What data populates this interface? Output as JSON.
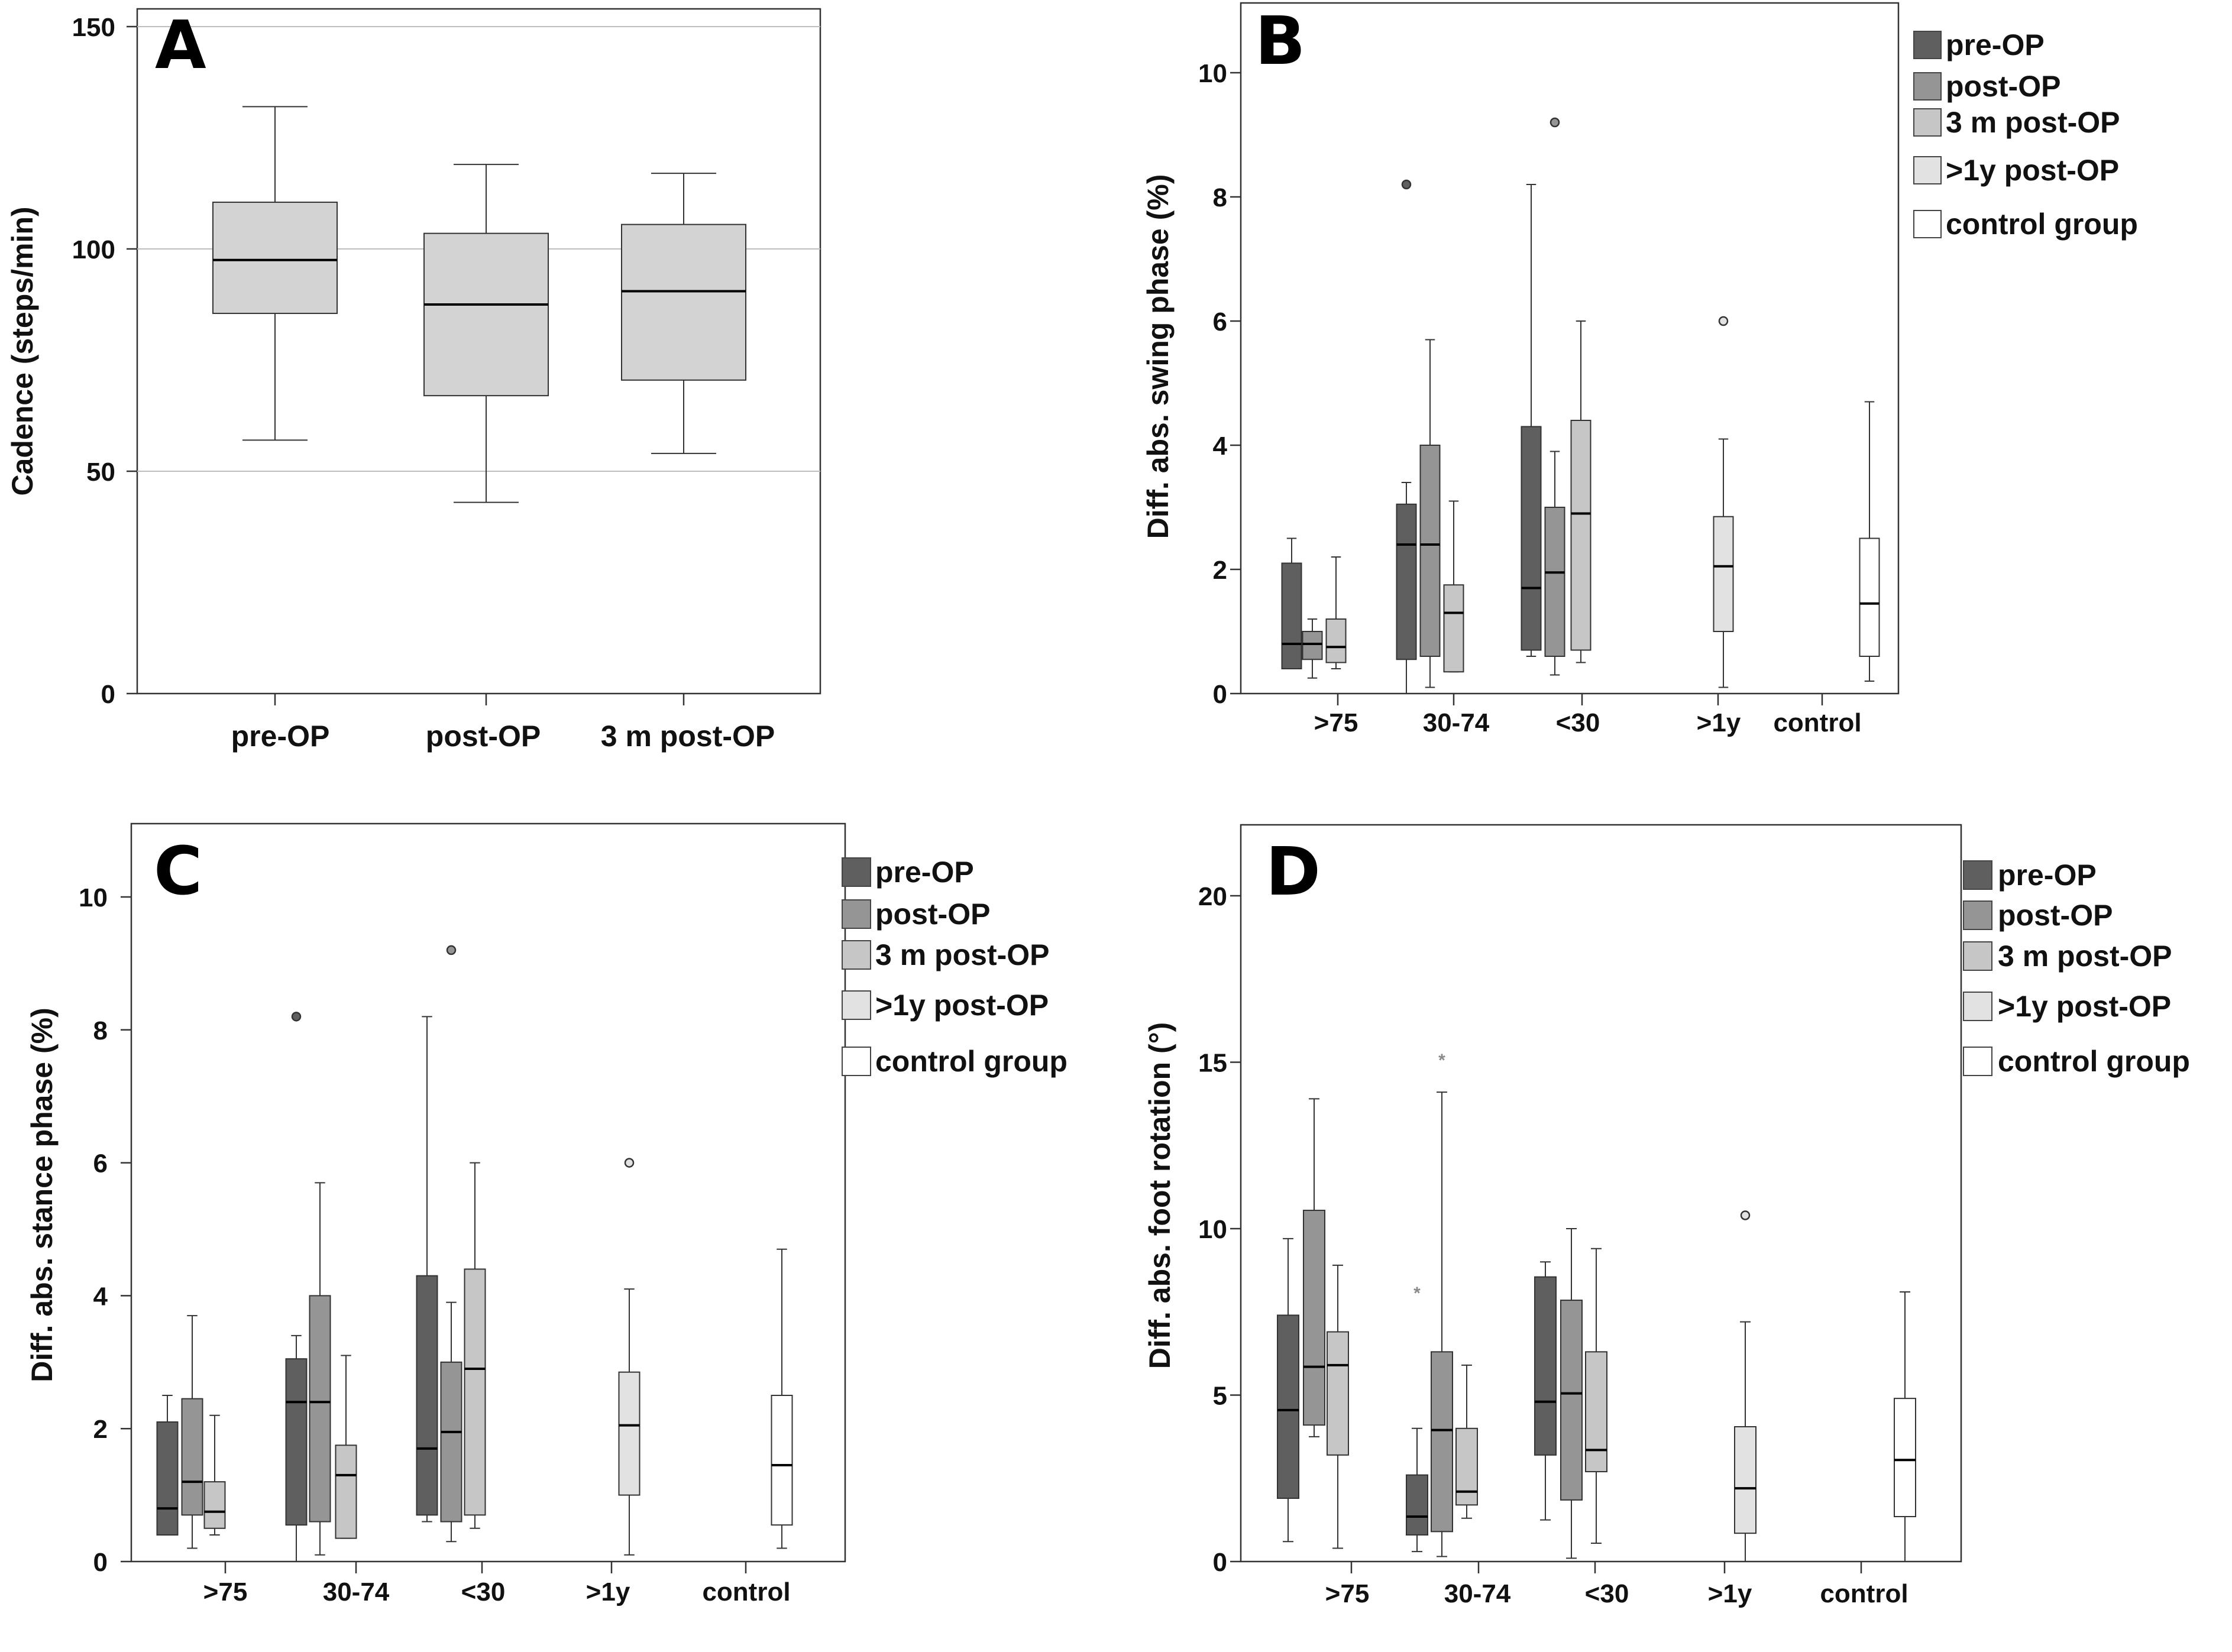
{
  "figure": {
    "legend_title": ""
  },
  "colors": {
    "pre_op": "#5f5f5f",
    "post_op": "#959595",
    "m3_post_op": "#c6c6c6",
    "y1_post_op": "#e2e2e2",
    "control": "#ffffff",
    "panelA_box": "#d3d3d3",
    "gridline": "#bdbdbd",
    "outline": "#333333"
  },
  "chart_data": [
    {
      "id": "A",
      "panel_label": "A",
      "type": "boxplot",
      "title": "",
      "xlabel": "",
      "ylabel": "Cadence (steps/min)",
      "ylim": [
        0,
        150
      ],
      "yticks": [
        0,
        50,
        100,
        150
      ],
      "ytick_labels": [
        "0",
        "50",
        "100",
        "150"
      ],
      "grid": true,
      "categories": [
        "pre-OP",
        "post-OP",
        "3 m post-OP"
      ],
      "legend": [],
      "boxes": [
        {
          "category": "pre-OP",
          "series": "pre-OP",
          "min": 57,
          "q1": 85.5,
          "median": 97.5,
          "q3": 110.5,
          "max": 132,
          "outliers": []
        },
        {
          "category": "post-OP",
          "series": "post-OP",
          "min": 43,
          "q1": 67,
          "median": 87.5,
          "q3": 103.5,
          "max": 119,
          "outliers": []
        },
        {
          "category": "3 m post-OP",
          "series": "3 m post-OP",
          "min": 54,
          "q1": 70.5,
          "median": 90.5,
          "q3": 105.5,
          "max": 117,
          "outliers": []
        }
      ]
    },
    {
      "id": "B",
      "panel_label": "B",
      "type": "boxplot",
      "title": "",
      "xlabel": "",
      "ylabel": "Diff. abs. swing phase (%)",
      "ylim": [
        0,
        11
      ],
      "yticks": [
        0,
        2,
        4,
        6,
        8,
        10
      ],
      "ytick_labels": [
        "0",
        "2",
        "4",
        "6",
        "8",
        "10"
      ],
      "grid": false,
      "categories": [
        ">75",
        "30-74",
        "<30",
        ">1y",
        "control"
      ],
      "legend": [
        "pre-OP",
        "post-OP",
        "3 m post-OP",
        ">1y post-OP",
        "control group"
      ],
      "boxes": [
        {
          "category": ">75",
          "series": "pre-OP",
          "min": 0.4,
          "q1": 0.4,
          "median": 0.8,
          "q3": 2.1,
          "max": 2.5,
          "outliers": []
        },
        {
          "category": ">75",
          "series": "post-OP",
          "min": 0.25,
          "q1": 0.55,
          "median": 0.8,
          "q3": 1.0,
          "max": 1.2,
          "outliers": []
        },
        {
          "category": ">75",
          "series": "3 m post-OP",
          "min": 0.4,
          "q1": 0.5,
          "median": 0.75,
          "q3": 1.2,
          "max": 2.2,
          "outliers": []
        },
        {
          "category": "30-74",
          "series": "pre-OP",
          "min": 0.0,
          "q1": 0.55,
          "median": 2.4,
          "q3": 3.05,
          "max": 3.4,
          "outliers": [
            {
              "value": 8.2,
              "marker": "circle"
            }
          ]
        },
        {
          "category": "30-74",
          "series": "post-OP",
          "min": 0.1,
          "q1": 0.6,
          "median": 2.4,
          "q3": 4.0,
          "max": 5.7,
          "outliers": []
        },
        {
          "category": "30-74",
          "series": "3 m post-OP",
          "min": 0.35,
          "q1": 0.35,
          "median": 1.3,
          "q3": 1.75,
          "max": 3.1,
          "outliers": []
        },
        {
          "category": "<30",
          "series": "pre-OP",
          "min": 0.6,
          "q1": 0.7,
          "median": 1.7,
          "q3": 4.3,
          "max": 8.2,
          "outliers": []
        },
        {
          "category": "<30",
          "series": "post-OP",
          "min": 0.3,
          "q1": 0.6,
          "median": 1.95,
          "q3": 3.0,
          "max": 3.9,
          "outliers": [
            {
              "value": 9.2,
              "marker": "circle"
            }
          ]
        },
        {
          "category": "<30",
          "series": "3 m post-OP",
          "min": 0.5,
          "q1": 0.7,
          "median": 2.9,
          "q3": 4.4,
          "max": 6.0,
          "outliers": []
        },
        {
          "category": ">1y",
          "series": ">1y post-OP",
          "min": 0.1,
          "q1": 1.0,
          "median": 2.05,
          "q3": 2.85,
          "max": 4.1,
          "outliers": [
            {
              "value": 6.0,
              "marker": "circle"
            }
          ]
        },
        {
          "category": "control",
          "series": "control group",
          "min": 0.2,
          "q1": 0.6,
          "median": 1.45,
          "q3": 2.5,
          "max": 4.7,
          "outliers": []
        }
      ]
    },
    {
      "id": "C",
      "panel_label": "C",
      "type": "boxplot",
      "title": "",
      "xlabel": "",
      "ylabel": "Diff. abs. stance phase (%)",
      "ylim": [
        0,
        11
      ],
      "yticks": [
        0,
        2,
        4,
        6,
        8,
        10
      ],
      "ytick_labels": [
        "0",
        "2",
        "4",
        "6",
        "8",
        "10"
      ],
      "grid": false,
      "categories": [
        ">75",
        "30-74",
        "<30",
        ">1y",
        "control"
      ],
      "legend": [
        "pre-OP",
        "post-OP",
        "3 m post-OP",
        ">1y post-OP",
        "control group"
      ],
      "boxes": [
        {
          "category": ">75",
          "series": "pre-OP",
          "min": 0.4,
          "q1": 0.4,
          "median": 0.8,
          "q3": 2.1,
          "max": 2.5,
          "outliers": []
        },
        {
          "category": ">75",
          "series": "post-OP",
          "min": 0.2,
          "q1": 0.7,
          "median": 1.2,
          "q3": 2.45,
          "max": 3.7,
          "outliers": []
        },
        {
          "category": ">75",
          "series": "3 m post-OP",
          "min": 0.4,
          "q1": 0.5,
          "median": 0.75,
          "q3": 1.2,
          "max": 2.2,
          "outliers": []
        },
        {
          "category": "30-74",
          "series": "pre-OP",
          "min": 0.0,
          "q1": 0.55,
          "median": 2.4,
          "q3": 3.05,
          "max": 3.4,
          "outliers": [
            {
              "value": 8.2,
              "marker": "circle"
            }
          ]
        },
        {
          "category": "30-74",
          "series": "post-OP",
          "min": 0.1,
          "q1": 0.6,
          "median": 2.4,
          "q3": 4.0,
          "max": 5.7,
          "outliers": []
        },
        {
          "category": "30-74",
          "series": "3 m post-OP",
          "min": 0.35,
          "q1": 0.35,
          "median": 1.3,
          "q3": 1.75,
          "max": 3.1,
          "outliers": []
        },
        {
          "category": "<30",
          "series": "pre-OP",
          "min": 0.6,
          "q1": 0.7,
          "median": 1.7,
          "q3": 4.3,
          "max": 8.2,
          "outliers": []
        },
        {
          "category": "<30",
          "series": "post-OP",
          "min": 0.3,
          "q1": 0.6,
          "median": 1.95,
          "q3": 3.0,
          "max": 3.9,
          "outliers": [
            {
              "value": 9.2,
              "marker": "circle"
            }
          ]
        },
        {
          "category": "<30",
          "series": "3 m post-OP",
          "min": 0.5,
          "q1": 0.7,
          "median": 2.9,
          "q3": 4.4,
          "max": 6.0,
          "outliers": []
        },
        {
          "category": ">1y",
          "series": ">1y post-OP",
          "min": 0.1,
          "q1": 1.0,
          "median": 2.05,
          "q3": 2.85,
          "max": 4.1,
          "outliers": [
            {
              "value": 6.0,
              "marker": "circle"
            }
          ]
        },
        {
          "category": "control",
          "series": "control group",
          "min": 0.2,
          "q1": 0.55,
          "median": 1.45,
          "q3": 2.5,
          "max": 4.7,
          "outliers": []
        }
      ]
    },
    {
      "id": "D",
      "panel_label": "D",
      "type": "boxplot",
      "title": "",
      "xlabel": "",
      "ylabel": "Diff. abs. foot rotation (°)",
      "ylim": [
        0,
        22
      ],
      "yticks": [
        0,
        5,
        10,
        15,
        20
      ],
      "ytick_labels": [
        "0",
        "5",
        "10",
        "15",
        "20"
      ],
      "grid": false,
      "categories": [
        ">75",
        "30-74",
        "<30",
        ">1y",
        "control"
      ],
      "legend": [
        "pre-OP",
        "post-OP",
        "3 m post-OP",
        ">1y post-OP",
        "control group"
      ],
      "boxes": [
        {
          "category": ">75",
          "series": "pre-OP",
          "min": 0.6,
          "q1": 1.9,
          "median": 4.55,
          "q3": 7.4,
          "max": 9.7,
          "outliers": []
        },
        {
          "category": ">75",
          "series": "post-OP",
          "min": 3.75,
          "q1": 4.1,
          "median": 5.85,
          "q3": 10.55,
          "max": 13.9,
          "outliers": []
        },
        {
          "category": ">75",
          "series": "3 m post-OP",
          "min": 0.4,
          "q1": 3.2,
          "median": 5.9,
          "q3": 6.9,
          "max": 8.9,
          "outliers": []
        },
        {
          "category": "30-74",
          "series": "pre-OP",
          "min": 0.3,
          "q1": 0.8,
          "median": 1.35,
          "q3": 2.6,
          "max": 4.0,
          "outliers": [
            {
              "value": 8.1,
              "marker": "star"
            }
          ]
        },
        {
          "category": "30-74",
          "series": "post-OP",
          "min": 0.15,
          "q1": 0.9,
          "median": 3.95,
          "q3": 6.3,
          "max": 14.1,
          "outliers": [
            {
              "value": 15.1,
              "marker": "star"
            }
          ]
        },
        {
          "category": "30-74",
          "series": "3 m post-OP",
          "min": 1.3,
          "q1": 1.7,
          "median": 2.1,
          "q3": 4.0,
          "max": 5.9,
          "outliers": []
        },
        {
          "category": "<30",
          "series": "pre-OP",
          "min": 1.25,
          "q1": 3.2,
          "median": 4.8,
          "q3": 8.55,
          "max": 9.0,
          "outliers": []
        },
        {
          "category": "<30",
          "series": "post-OP",
          "min": 0.1,
          "q1": 1.85,
          "median": 5.05,
          "q3": 7.85,
          "max": 10.0,
          "outliers": []
        },
        {
          "category": "<30",
          "series": "3 m post-OP",
          "min": 0.55,
          "q1": 2.7,
          "median": 3.35,
          "q3": 6.3,
          "max": 9.4,
          "outliers": []
        },
        {
          "category": ">1y",
          "series": ">1y post-OP",
          "min": 0.0,
          "q1": 0.85,
          "median": 2.2,
          "q3": 4.05,
          "max": 7.2,
          "outliers": [
            {
              "value": 10.4,
              "marker": "circle"
            }
          ]
        },
        {
          "category": "control",
          "series": "control group",
          "min": 0.0,
          "q1": 1.35,
          "median": 3.05,
          "q3": 4.9,
          "max": 8.1,
          "outliers": []
        }
      ]
    }
  ]
}
